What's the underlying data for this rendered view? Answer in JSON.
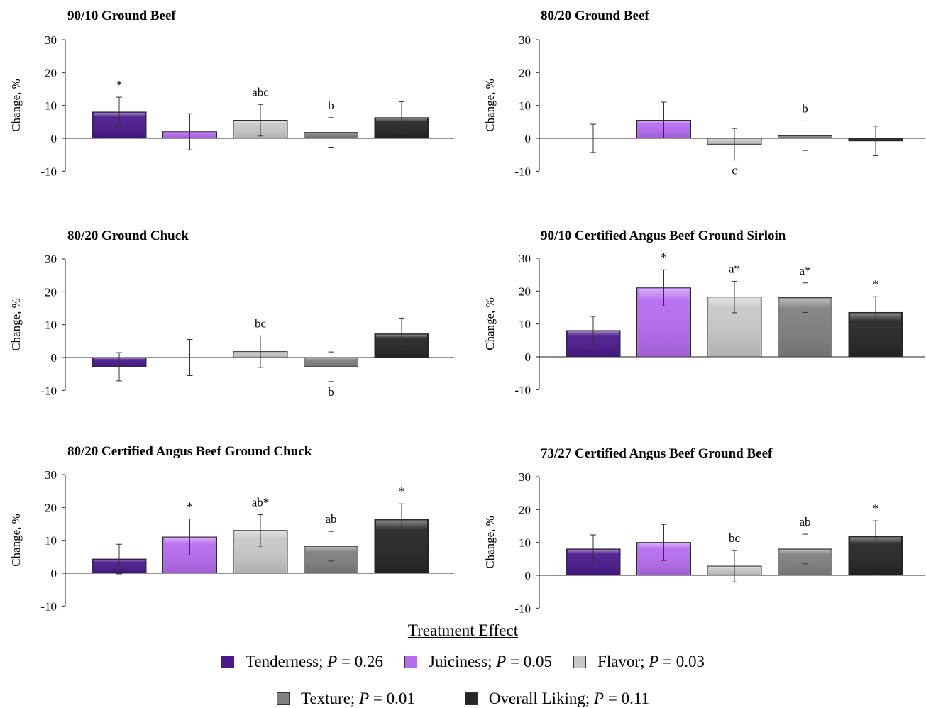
{
  "chart_data": [
    {
      "type": "bar",
      "title": "90/10 Ground Beef",
      "ylabel": "Change, %",
      "ylim": [
        -10,
        30
      ],
      "yticks": [
        "30",
        "20",
        "10",
        "0",
        "-10"
      ],
      "categories": [
        "Tenderness",
        "Juiciness",
        "Flavor",
        "Texture",
        "Overall Liking"
      ],
      "values": [
        8,
        2,
        5.5,
        1.8,
        6.3
      ],
      "errors": [
        4.5,
        5.5,
        4.8,
        4.5,
        4.8
      ],
      "annotations": [
        "*",
        "",
        "abc",
        "b",
        ""
      ]
    },
    {
      "type": "bar",
      "title": "80/20 Ground Beef",
      "ylabel": "Change, %",
      "ylim": [
        -10,
        30
      ],
      "yticks": [
        "30",
        "20",
        "10",
        "0",
        "-10"
      ],
      "categories": [
        "Tenderness",
        "Juiciness",
        "Flavor",
        "Texture",
        "Overall Liking"
      ],
      "values": [
        0,
        5.5,
        -1.8,
        0.8,
        -0.8
      ],
      "errors": [
        4.3,
        5.5,
        4.8,
        4.5,
        4.5
      ],
      "annotations": [
        "",
        "",
        "c",
        "b",
        ""
      ]
    },
    {
      "type": "bar",
      "title": "80/20 Ground Chuck",
      "ylabel": "Change, %",
      "ylim": [
        -10,
        30
      ],
      "yticks": [
        "30",
        "20",
        "10",
        "0",
        "-10"
      ],
      "categories": [
        "Tenderness",
        "Juiciness",
        "Flavor",
        "Texture",
        "Overall Liking"
      ],
      "values": [
        -2.8,
        0,
        1.8,
        -2.8,
        7.2
      ],
      "errors": [
        4.3,
        5.5,
        4.8,
        4.5,
        4.8
      ],
      "annotations": [
        "",
        "",
        "bc",
        "b",
        ""
      ]
    },
    {
      "type": "bar",
      "title": "90/10 Certified Angus Beef Ground Sirloin",
      "ylabel": "Change, %",
      "ylim": [
        -10,
        30
      ],
      "yticks": [
        "30",
        "20",
        "10",
        "0",
        "-10"
      ],
      "categories": [
        "Tenderness",
        "Juiciness",
        "Flavor",
        "Texture",
        "Overall Liking"
      ],
      "values": [
        8,
        21,
        18.2,
        18,
        13.5
      ],
      "errors": [
        4.3,
        5.5,
        4.8,
        4.5,
        4.8
      ],
      "annotations": [
        "",
        "*",
        "a*",
        "a*",
        "*"
      ]
    },
    {
      "type": "bar",
      "title": "80/20 Certified Angus Beef Ground Chuck",
      "ylabel": "Change, %",
      "ylim": [
        -10,
        30
      ],
      "yticks": [
        "30",
        "20",
        "10",
        "0",
        "-10"
      ],
      "categories": [
        "Tenderness",
        "Juiciness",
        "Flavor",
        "Texture",
        "Overall Liking"
      ],
      "values": [
        4.3,
        11,
        13,
        8.2,
        16.3
      ],
      "errors": [
        4.5,
        5.5,
        4.8,
        4.5,
        4.8
      ],
      "annotations": [
        "",
        "*",
        "ab*",
        "ab",
        "*"
      ]
    },
    {
      "type": "bar",
      "title": "73/27 Certified Angus Beef Ground Beef",
      "ylabel": "Change, %",
      "ylim": [
        -10,
        30
      ],
      "yticks": [
        "30",
        "20",
        "10",
        "0",
        "-10"
      ],
      "categories": [
        "Tenderness",
        "Juiciness",
        "Flavor",
        "Texture",
        "Overall Liking"
      ],
      "values": [
        8,
        10,
        2.8,
        8,
        11.8
      ],
      "errors": [
        4.3,
        5.5,
        4.8,
        4.5,
        4.8
      ],
      "annotations": [
        "",
        "",
        "bc",
        "ab",
        "*"
      ]
    }
  ],
  "series_colors": [
    "#4a1a8c",
    "#b66cf0",
    "#c8c8c8",
    "#808080",
    "#262626"
  ],
  "legend": {
    "title": "Treatment Effect",
    "row1": [
      {
        "name": "Tenderness",
        "p_prefix": "; ",
        "p_letter": "P",
        "p_value": " = 0.26",
        "color": "#4a1a8c"
      },
      {
        "name": "Juiciness",
        "p_prefix": "; ",
        "p_letter": "P",
        "p_value": " = 0.05",
        "color": "#b66cf0"
      },
      {
        "name": "Flavor",
        "p_prefix": "; ",
        "p_letter": "P",
        "p_value": " = 0.03",
        "color": "#c8c8c8"
      }
    ],
    "row2": [
      {
        "name": "Texture",
        "p_prefix": "; ",
        "p_letter": "P",
        "p_value": " = 0.01",
        "color": "#808080"
      },
      {
        "name": "Overall Liking",
        "p_prefix": "; ",
        "p_letter": "P",
        "p_value": " = 0.11",
        "color": "#262626"
      }
    ]
  }
}
